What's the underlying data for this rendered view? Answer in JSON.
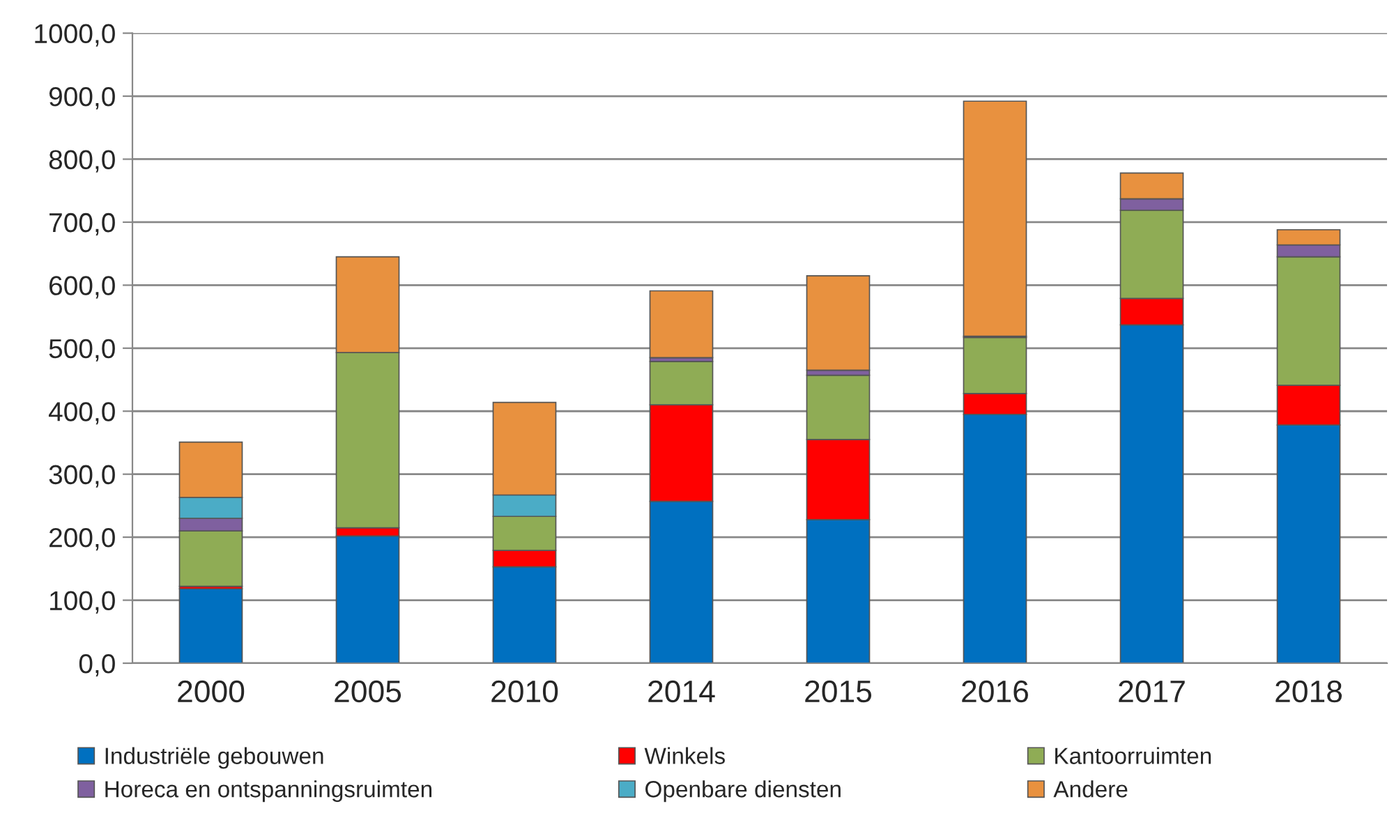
{
  "chart_data": {
    "type": "bar",
    "stacked": true,
    "categories": [
      "2000",
      "2005",
      "2010",
      "2014",
      "2015",
      "2016",
      "2017",
      "2018"
    ],
    "series": [
      {
        "name": "Industriële gebouwen",
        "color": "#0070c0",
        "values": [
          118,
          202,
          153,
          257,
          228,
          395,
          537,
          378
        ]
      },
      {
        "name": "Winkels",
        "color": "#ff0000",
        "values": [
          4,
          13,
          26,
          153,
          127,
          33,
          42,
          63
        ]
      },
      {
        "name": "Kantoorruimten",
        "color": "#8fac55",
        "values": [
          88,
          278,
          54,
          69,
          102,
          89,
          140,
          204
        ]
      },
      {
        "name": "Horeca en ontspanningsruimten",
        "color": "#7f609f",
        "values": [
          20,
          0,
          0,
          6,
          8,
          2,
          18,
          19
        ]
      },
      {
        "name": "Openbare diensten",
        "color": "#4bacc6",
        "values": [
          33,
          0,
          34,
          0,
          0,
          0,
          0,
          0
        ]
      },
      {
        "name": "Andere",
        "color": "#e8913f",
        "values": [
          88,
          152,
          147,
          106,
          150,
          373,
          41,
          24
        ]
      }
    ],
    "ylim": [
      0,
      1000
    ],
    "yticks": [
      {
        "value": 0,
        "label": "0,0"
      },
      {
        "value": 100,
        "label": "100,0"
      },
      {
        "value": 200,
        "label": "200,0"
      },
      {
        "value": 300,
        "label": "300,0"
      },
      {
        "value": 400,
        "label": "400,0"
      },
      {
        "value": 500,
        "label": "500,0"
      },
      {
        "value": 600,
        "label": "600,0"
      },
      {
        "value": 700,
        "label": "700,0"
      },
      {
        "value": 800,
        "label": "800,0"
      },
      {
        "value": 900,
        "label": "900,0"
      },
      {
        "value": 1000,
        "label": "1000,0"
      }
    ],
    "grid": "y",
    "legend": "bottom"
  }
}
